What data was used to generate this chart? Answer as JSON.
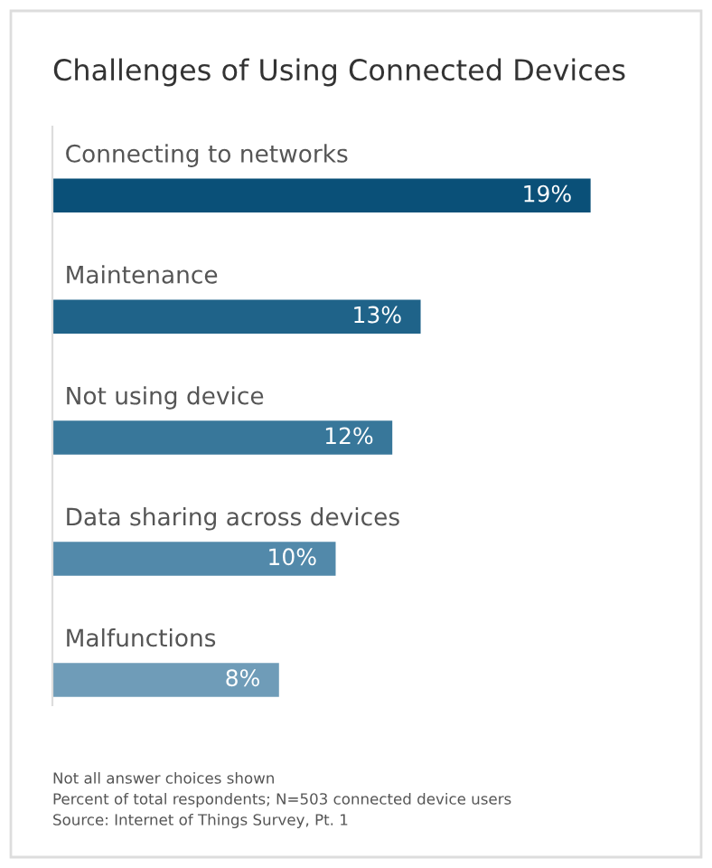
{
  "chart_data": {
    "type": "bar",
    "orientation": "horizontal",
    "title": "Challenges of Using Connected Devices",
    "categories": [
      "Connecting to networks",
      "Maintenance",
      "Not using device",
      "Data sharing across devices",
      "Malfunctions"
    ],
    "values": [
      19,
      13,
      12,
      10,
      8
    ],
    "colors": [
      "#0a5078",
      "#1f6389",
      "#38779a",
      "#5289aa",
      "#6f9cb8"
    ],
    "value_labels": [
      "19%",
      "13%",
      "12%",
      "10%",
      "8%"
    ],
    "annotations": [
      "Not all answer choices shown",
      "Percent of total respondents; N=503 connected device users",
      "Source: Internet of Things Survey, Pt. 1"
    ]
  }
}
